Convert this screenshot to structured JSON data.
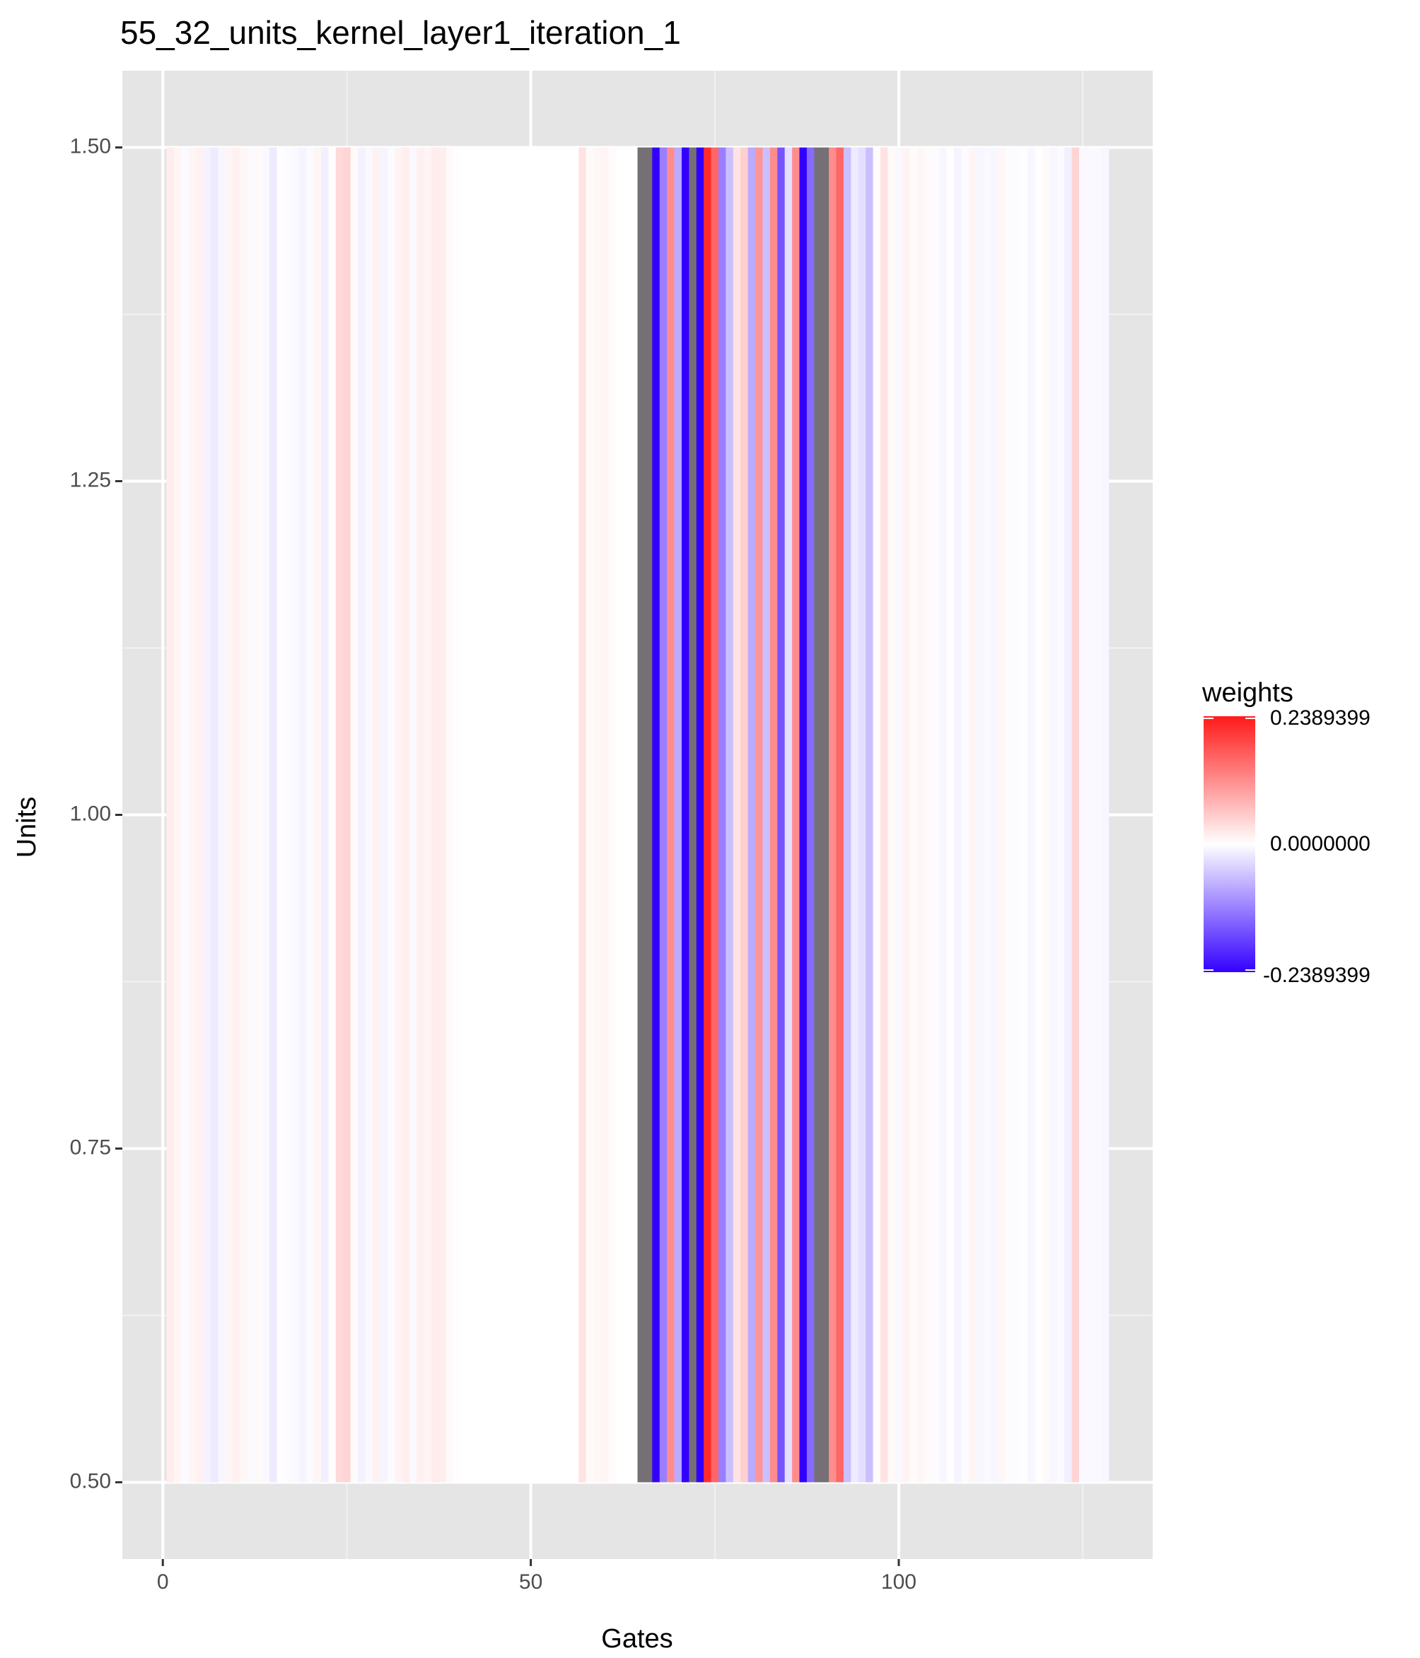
{
  "chart_data": {
    "type": "heatmap",
    "title": "55_32_units_kernel_layer1_iteration_1",
    "xlabel": "Gates",
    "ylabel": "Units",
    "xlim": [
      -5.5,
      134.5
    ],
    "ylim": [
      0.4425,
      1.5575
    ],
    "y_range": [
      0.5,
      1.5
    ],
    "x_ticks": [
      0,
      50,
      100
    ],
    "x_tick_labels": [
      "0",
      "50",
      "100"
    ],
    "y_ticks": [
      0.5,
      0.75,
      1.0,
      1.25,
      1.5
    ],
    "y_tick_labels": [
      "0.50",
      "0.75",
      "1.00",
      "1.25",
      "1.50"
    ],
    "grid": true,
    "legend": {
      "title": "weights",
      "placement": "right",
      "min": -0.2389399,
      "max": 0.2389399,
      "labels": [
        "0.2389399",
        "0.0000000",
        "-0.2389399"
      ],
      "colors": {
        "low": "#3300ff",
        "mid": "#ffffff",
        "high": "#ff1a1a",
        "na": "#757075"
      }
    },
    "x": [
      1,
      2,
      3,
      4,
      5,
      6,
      7,
      8,
      9,
      10,
      11,
      12,
      13,
      14,
      15,
      16,
      17,
      18,
      19,
      20,
      21,
      22,
      23,
      24,
      25,
      26,
      27,
      28,
      29,
      30,
      31,
      32,
      33,
      34,
      35,
      36,
      37,
      38,
      39,
      40,
      41,
      42,
      43,
      44,
      45,
      46,
      47,
      48,
      49,
      50,
      51,
      52,
      53,
      54,
      55,
      56,
      57,
      58,
      59,
      60,
      61,
      62,
      63,
      64,
      65,
      66,
      67,
      68,
      69,
      70,
      71,
      72,
      73,
      74,
      75,
      76,
      77,
      78,
      79,
      80,
      81,
      82,
      83,
      84,
      85,
      86,
      87,
      88,
      89,
      90,
      91,
      92,
      93,
      94,
      95,
      96,
      97,
      98,
      99,
      100,
      101,
      102,
      103,
      104,
      105,
      106,
      107,
      108,
      109,
      110,
      111,
      112,
      113,
      114,
      115,
      116,
      117,
      118,
      119,
      120,
      121,
      122,
      123,
      124,
      125,
      126,
      127,
      128
    ],
    "values": [
      0.02,
      0.01,
      -0.005,
      0.01,
      0.015,
      -0.012,
      -0.02,
      -0.008,
      0.01,
      0.015,
      0.008,
      -0.005,
      0.005,
      -0.006,
      -0.02,
      0.002,
      -0.004,
      -0.006,
      -0.01,
      -0.005,
      0.01,
      -0.015,
      0.003,
      0.04,
      0.045,
      0.005,
      -0.012,
      -0.006,
      0.015,
      -0.01,
      -0.004,
      0.012,
      0.018,
      -0.006,
      0.015,
      0.01,
      0.02,
      0.018,
      0.005,
      0.002,
      0.0,
      0.0,
      0.0,
      0.0,
      0.0,
      0.0,
      0.0,
      0.0,
      0.0,
      0.0,
      0.0,
      0.0,
      0.0,
      0.0,
      0.0,
      0.0,
      0.03,
      0.005,
      0.008,
      0.01,
      0.004,
      0.0,
      0.0,
      0.0,
      null,
      null,
      -0.24,
      -0.12,
      0.12,
      -0.08,
      -0.24,
      null,
      -0.24,
      0.22,
      0.16,
      -0.12,
      -0.06,
      0.03,
      0.05,
      -0.08,
      0.11,
      -0.06,
      0.12,
      -0.16,
      -0.03,
      0.12,
      -0.24,
      -0.14,
      null,
      null,
      0.12,
      0.16,
      -0.06,
      -0.02,
      -0.03,
      -0.06,
      0.004,
      0.03,
      0.006,
      -0.006,
      0.012,
      0.004,
      0.008,
      0.004,
      -0.004,
      -0.008,
      0.002,
      -0.01,
      -0.004,
      0.01,
      -0.008,
      -0.006,
      -0.008,
      0.008,
      -0.003,
      -0.003,
      -0.002,
      -0.008,
      0.002,
      0.005,
      -0.008,
      -0.004,
      -0.015,
      0.045,
      -0.006,
      -0.006,
      -0.006,
      -0.008
    ]
  }
}
